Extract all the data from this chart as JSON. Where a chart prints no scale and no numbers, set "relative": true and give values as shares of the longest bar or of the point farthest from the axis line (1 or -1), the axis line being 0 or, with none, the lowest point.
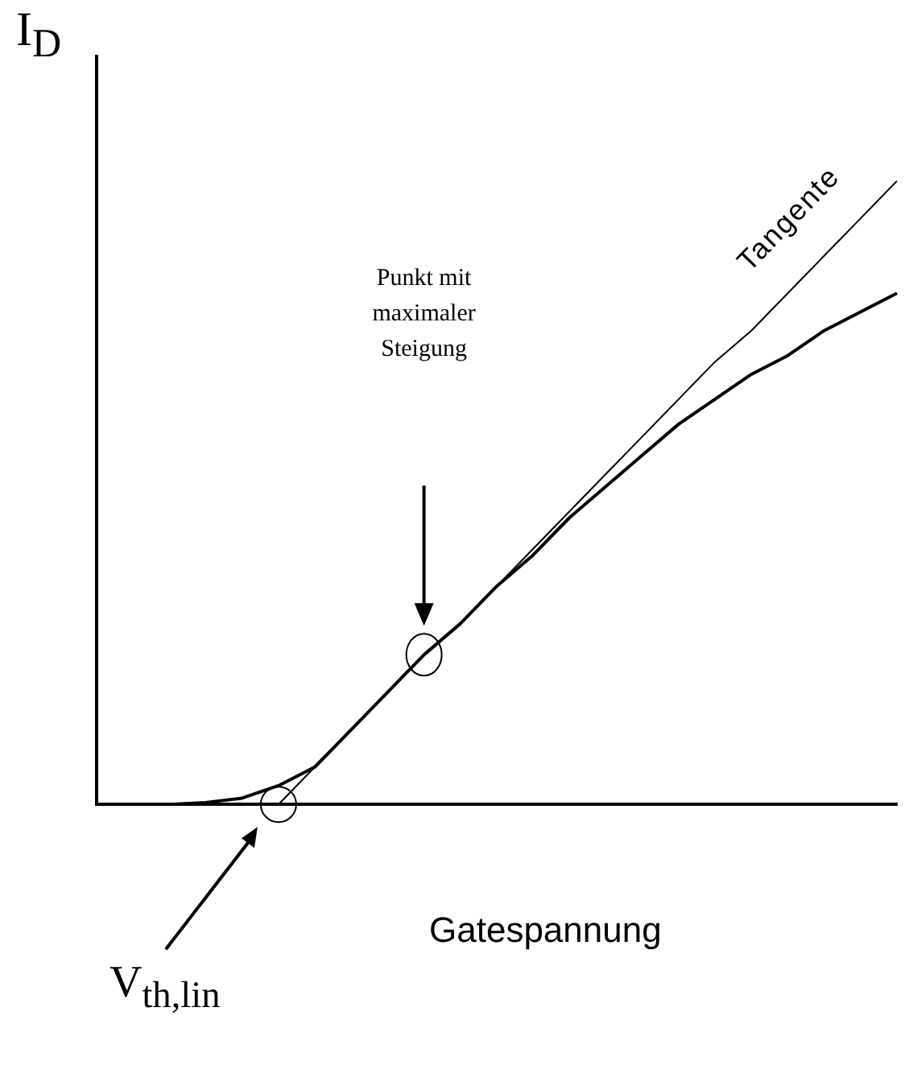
{
  "chart_data": {
    "type": "line",
    "relative": true,
    "xlabel": "Gatespannung",
    "ylabel": "I$_{D}$",
    "grid": false,
    "legend": false,
    "marker": "none",
    "line_style": "solid",
    "categories": [
      null,
      null,
      null,
      null,
      null,
      null,
      null,
      null,
      null,
      null,
      null,
      null,
      null,
      null,
      null,
      null,
      null,
      null,
      null,
      null,
      null,
      null,
      null
    ],
    "series": [
      {
        "color": "#000000",
        "values": [
          0,
          0,
          0,
          0.003,
          0.01,
          0.03,
          0.06,
          0.12,
          0.18,
          0.24,
          0.29,
          0.35,
          0.4,
          0.46,
          0.51,
          0.56,
          0.61,
          0.65,
          0.69,
          0.72,
          0.76,
          0.79,
          0.82
        ]
      },
      {
        "color": "#000000",
        "values": [
          null,
          null,
          null,
          null,
          null,
          0,
          0.06,
          0.12,
          0.18,
          0.24,
          0.29,
          0.35,
          0.41,
          0.47,
          0.53,
          0.59,
          0.65,
          0.71,
          0.76,
          0.82,
          0.88,
          0.94,
          1
        ]
      }
    ],
    "annotations": [
      "Punkt mit maximaler Steigung",
      "Tangente",
      "V$_{th,lin}$"
    ]
  }
}
